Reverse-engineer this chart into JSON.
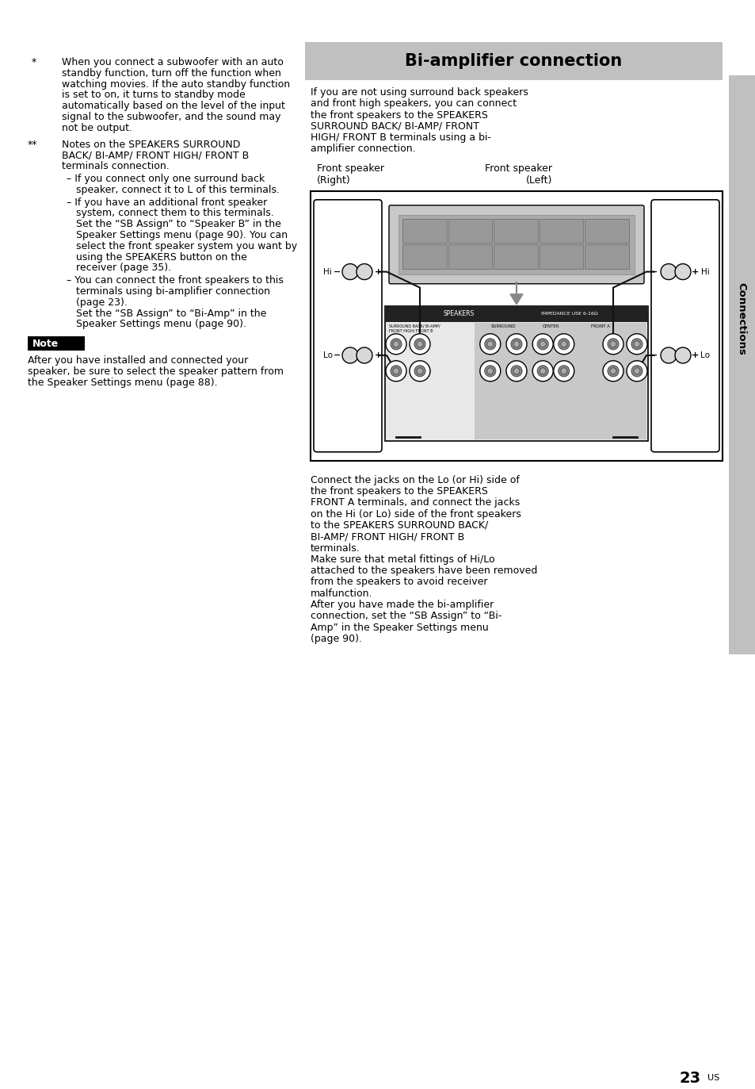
{
  "page_bg": "#ffffff",
  "title": "Bi-amplifier connection",
  "title_bg": "#c0c0c0",
  "sidebar_bg": "#c0c0c0",
  "sidebar_text": "Connections",
  "page_number": "23",
  "page_suffix": "US",
  "left_bullet1_lines": [
    "When you connect a subwoofer with an auto",
    "standby function, turn off the function when",
    "watching movies. If the auto standby function",
    "is set to on, it turns to standby mode",
    "automatically based on the level of the input",
    "signal to the subwoofer, and the sound may",
    "not be output."
  ],
  "left_bullet2_head": [
    "Notes on the SPEAKERS SURROUND",
    "BACK/ BI-AMP/ FRONT HIGH/ FRONT B",
    "terminals connection."
  ],
  "left_subbullet1": [
    "– If you connect only one surround back",
    "   speaker, connect it to L of this terminals."
  ],
  "left_subbullet2": [
    "– If you have an additional front speaker",
    "   system, connect them to this terminals.",
    "   Set the “SB Assign” to “Speaker B” in the",
    "   Speaker Settings menu (page 90). You can",
    "   select the front speaker system you want by",
    "   using the SPEAKERS button on the",
    "   receiver (page 35)."
  ],
  "left_subbullet3": [
    "– You can connect the front speakers to this",
    "   terminals using bi-amplifier connection",
    "   (page 23).",
    "   Set the “SB Assign” to “Bi-Amp” in the",
    "   Speaker Settings menu (page 90)."
  ],
  "note_label": "Note",
  "note_lines": [
    "After you have installed and connected your",
    "speaker, be sure to select the speaker pattern from",
    "the Speaker Settings menu (page 88)."
  ],
  "intro_lines": [
    "If you are not using surround back speakers",
    "and front high speakers, you can connect",
    "the front speakers to the SPEAKERS",
    "SURROUND BACK/ BI-AMP/ FRONT",
    "HIGH/ FRONT B terminals using a bi-",
    "amplifier connection."
  ],
  "body_lines": [
    "Connect the jacks on the Lo (or Hi) side of",
    "the front speakers to the SPEAKERS",
    "FRONT A terminals, and connect the jacks",
    "on the Hi (or Lo) side of the front speakers",
    "to the SPEAKERS SURROUND BACK/",
    "BI-AMP/ FRONT HIGH/ FRONT B",
    "terminals.",
    "Make sure that metal fittings of Hi/Lo",
    "attached to the speakers have been removed",
    "from the speakers to avoid receiver",
    "malfunction.",
    "After you have made the bi-amplifier",
    "connection, set the “SB Assign” to “Bi-",
    "Amp” in the Speaker Settings menu",
    "(page 90)."
  ]
}
